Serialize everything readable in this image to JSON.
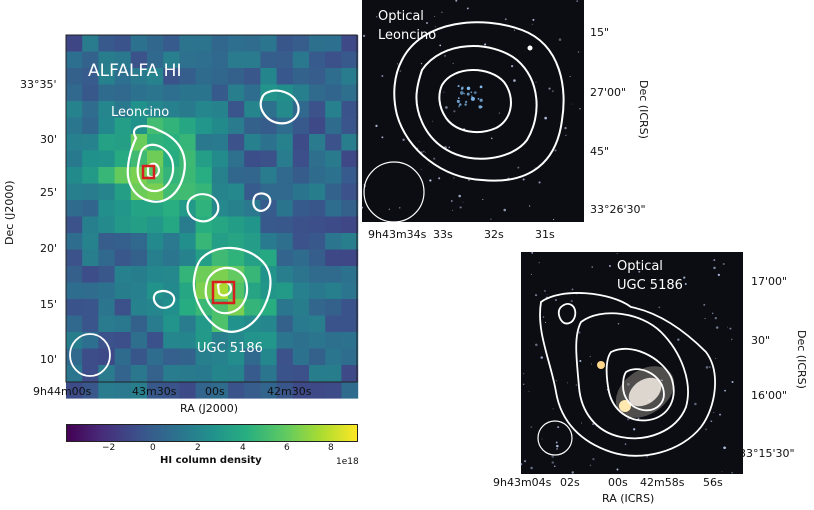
{
  "left_panel": {
    "title": "ALFALFA HI",
    "label_top_source": "Leoncino",
    "label_bottom_source": "UGC 5186",
    "y_label": "Dec (J2000)",
    "x_label": "RA (J2000)",
    "y_ticks": [
      "33°35'",
      "30'",
      "25'",
      "20'",
      "15'",
      "10'"
    ],
    "x_ticks": [
      "9h44m00s",
      "43m30s",
      "00s",
      "42m30s"
    ]
  },
  "colorbar": {
    "label": "HI column density",
    "ticks": [
      "−2",
      "0",
      "2",
      "4",
      "6",
      "8"
    ],
    "exponent": "1e18",
    "range": [
      -4,
      9
    ],
    "colormap": "viridis"
  },
  "top_right_panel": {
    "title_line1": "Optical",
    "title_line2": "Leoncino",
    "y_label": "Dec (ICRS)",
    "y_ticks": [
      "15\"",
      "27'00\"",
      "45\"",
      "33°26'30\""
    ],
    "x_ticks": [
      "9h43m34s",
      "33s",
      "32s",
      "31s"
    ]
  },
  "bottom_right_panel": {
    "title_line1": "Optical",
    "title_line2": "UGC 5186",
    "y_label": "Dec (ICRS)",
    "x_label": "RA (ICRS)",
    "y_ticks": [
      "17'00\"",
      "30\"",
      "16'00\"",
      "33°15'30\""
    ],
    "x_ticks": [
      "9h43m04s",
      "02s",
      "00s",
      "42m58s",
      "56s"
    ]
  },
  "colors": {
    "contour": "#ffffff",
    "marker_box": "#d62020",
    "sky_background": "#0b0d12"
  }
}
